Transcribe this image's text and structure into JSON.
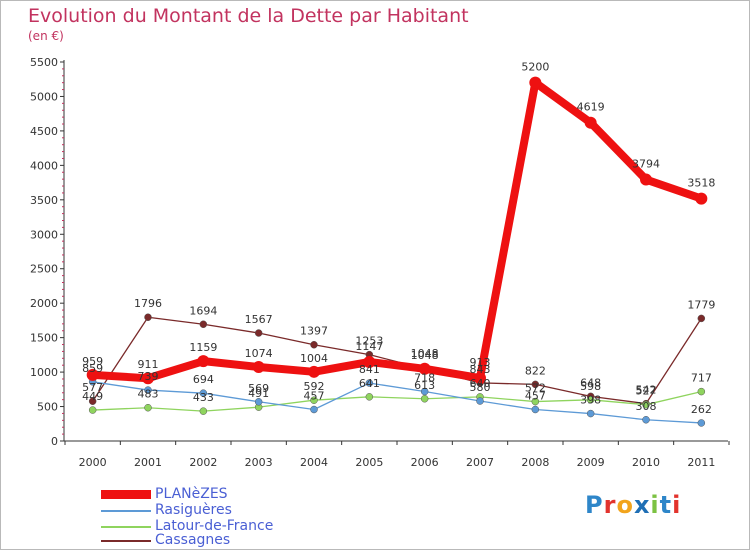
{
  "title": "Evolution du Montant de la Dette par Habitant",
  "unit": "(en €)",
  "brand": "Proxiti",
  "chart_data": {
    "type": "line",
    "x": [
      "2000",
      "2001",
      "2002",
      "2003",
      "2004",
      "2005",
      "2006",
      "2007",
      "2008",
      "2009",
      "2010",
      "2011"
    ],
    "ylim": [
      0,
      5500
    ],
    "yticks": [
      0,
      500,
      1000,
      1500,
      2000,
      2500,
      3000,
      3500,
      4000,
      4500,
      5000,
      5500
    ],
    "grid": false,
    "legend_position": "bottom-left",
    "series": [
      {
        "name": "PLANèZES",
        "color": "#ee1111",
        "values": [
          959,
          911,
          1159,
          1074,
          1004,
          1147,
          1048,
          913,
          5200,
          4619,
          3794,
          3518
        ]
      },
      {
        "name": "Rasiguères",
        "color": "#5d9ad6",
        "values": [
          859,
          739,
          694,
          569,
          457,
          841,
          718,
          580,
          457,
          398,
          308,
          262
        ]
      },
      {
        "name": "Latour-de-France",
        "color": "#8fd45e",
        "values": [
          449,
          483,
          433,
          491,
          592,
          641,
          613,
          640,
          572,
          598,
          527,
          717
        ]
      },
      {
        "name": "Cassagnes",
        "color": "#7a2a2a",
        "values": [
          577,
          1796,
          1694,
          1567,
          1397,
          1253,
          1048,
          843,
          822,
          648,
          542,
          1779
        ]
      }
    ],
    "labels": [
      [
        {
          "t": "959",
          "dx": 0,
          "dy": -10
        },
        {
          "t": "911",
          "dx": 0,
          "dy": -10
        },
        {
          "t": "1159",
          "dx": 0,
          "dy": -10
        },
        {
          "t": "1074",
          "dx": 0,
          "dy": -10
        },
        {
          "t": "1004",
          "dx": 0,
          "dy": -10
        },
        {
          "t": "1147",
          "dx": 0,
          "dy": -12
        },
        {
          "t": "1048",
          "dx": 0,
          "dy": -12
        },
        {
          "t": "913",
          "dx": 0,
          "dy": -12
        },
        {
          "t": "5200",
          "dx": 0,
          "dy": -12
        },
        {
          "t": "4619",
          "dx": 0,
          "dy": -12
        },
        {
          "t": "3794",
          "dx": 0,
          "dy": -12
        },
        {
          "t": "3518",
          "dx": 0,
          "dy": -12
        }
      ],
      [
        {
          "t": "859",
          "dx": 0,
          "dy": -10
        },
        {
          "t": "739",
          "dx": 0,
          "dy": -10
        },
        {
          "t": "694",
          "dx": 0,
          "dy": -10
        },
        {
          "t": "569",
          "dx": 0,
          "dy": -10
        },
        {
          "t": "457",
          "dx": 0,
          "dy": -10
        },
        {
          "t": "841",
          "dx": 0,
          "dy": -10
        },
        {
          "t": "718",
          "dx": 0,
          "dy": -10
        },
        {
          "t": "580",
          "dx": 0,
          "dy": -10
        },
        {
          "t": "457",
          "dx": 0,
          "dy": -10
        },
        {
          "t": "398",
          "dx": 0,
          "dy": -10
        },
        {
          "t": "308",
          "dx": 0,
          "dy": -10
        },
        {
          "t": "262",
          "dx": 0,
          "dy": -10
        }
      ],
      [
        {
          "t": "449",
          "dx": 0,
          "dy": -10
        },
        {
          "t": "483",
          "dx": 0,
          "dy": -10
        },
        {
          "t": "433",
          "dx": 0,
          "dy": -10
        },
        {
          "t": "491",
          "dx": 0,
          "dy": -10
        },
        {
          "t": "592",
          "dx": 0,
          "dy": -10
        },
        {
          "t": "641",
          "dx": 0,
          "dy": -10
        },
        {
          "t": "613",
          "dx": 0,
          "dy": -10
        },
        {
          "t": "640",
          "dx": 0,
          "dy": -10
        },
        {
          "t": "572",
          "dx": 0,
          "dy": -10
        },
        {
          "t": "598",
          "dx": 0,
          "dy": -10
        },
        {
          "t": "527",
          "dx": 0,
          "dy": -10
        },
        {
          "t": "717",
          "dx": 0,
          "dy": -10
        }
      ],
      [
        {
          "t": "577",
          "dx": 0,
          "dy": -10
        },
        {
          "t": "1796",
          "dx": 0,
          "dy": -10
        },
        {
          "t": "1694",
          "dx": 0,
          "dy": -10
        },
        {
          "t": "1567",
          "dx": 0,
          "dy": -10
        },
        {
          "t": "1397",
          "dx": 0,
          "dy": -10
        },
        {
          "t": "1253",
          "dx": 0,
          "dy": -10
        },
        {
          "t": "1048",
          "dx": 0,
          "dy": -10
        },
        {
          "t": "843",
          "dx": 0,
          "dy": -10
        },
        {
          "t": "822",
          "dx": 0,
          "dy": -10
        },
        {
          "t": "648",
          "dx": 0,
          "dy": -10
        },
        {
          "t": "542",
          "dx": 0,
          "dy": -10
        },
        {
          "t": "1779",
          "dx": 0,
          "dy": -10
        }
      ]
    ]
  }
}
